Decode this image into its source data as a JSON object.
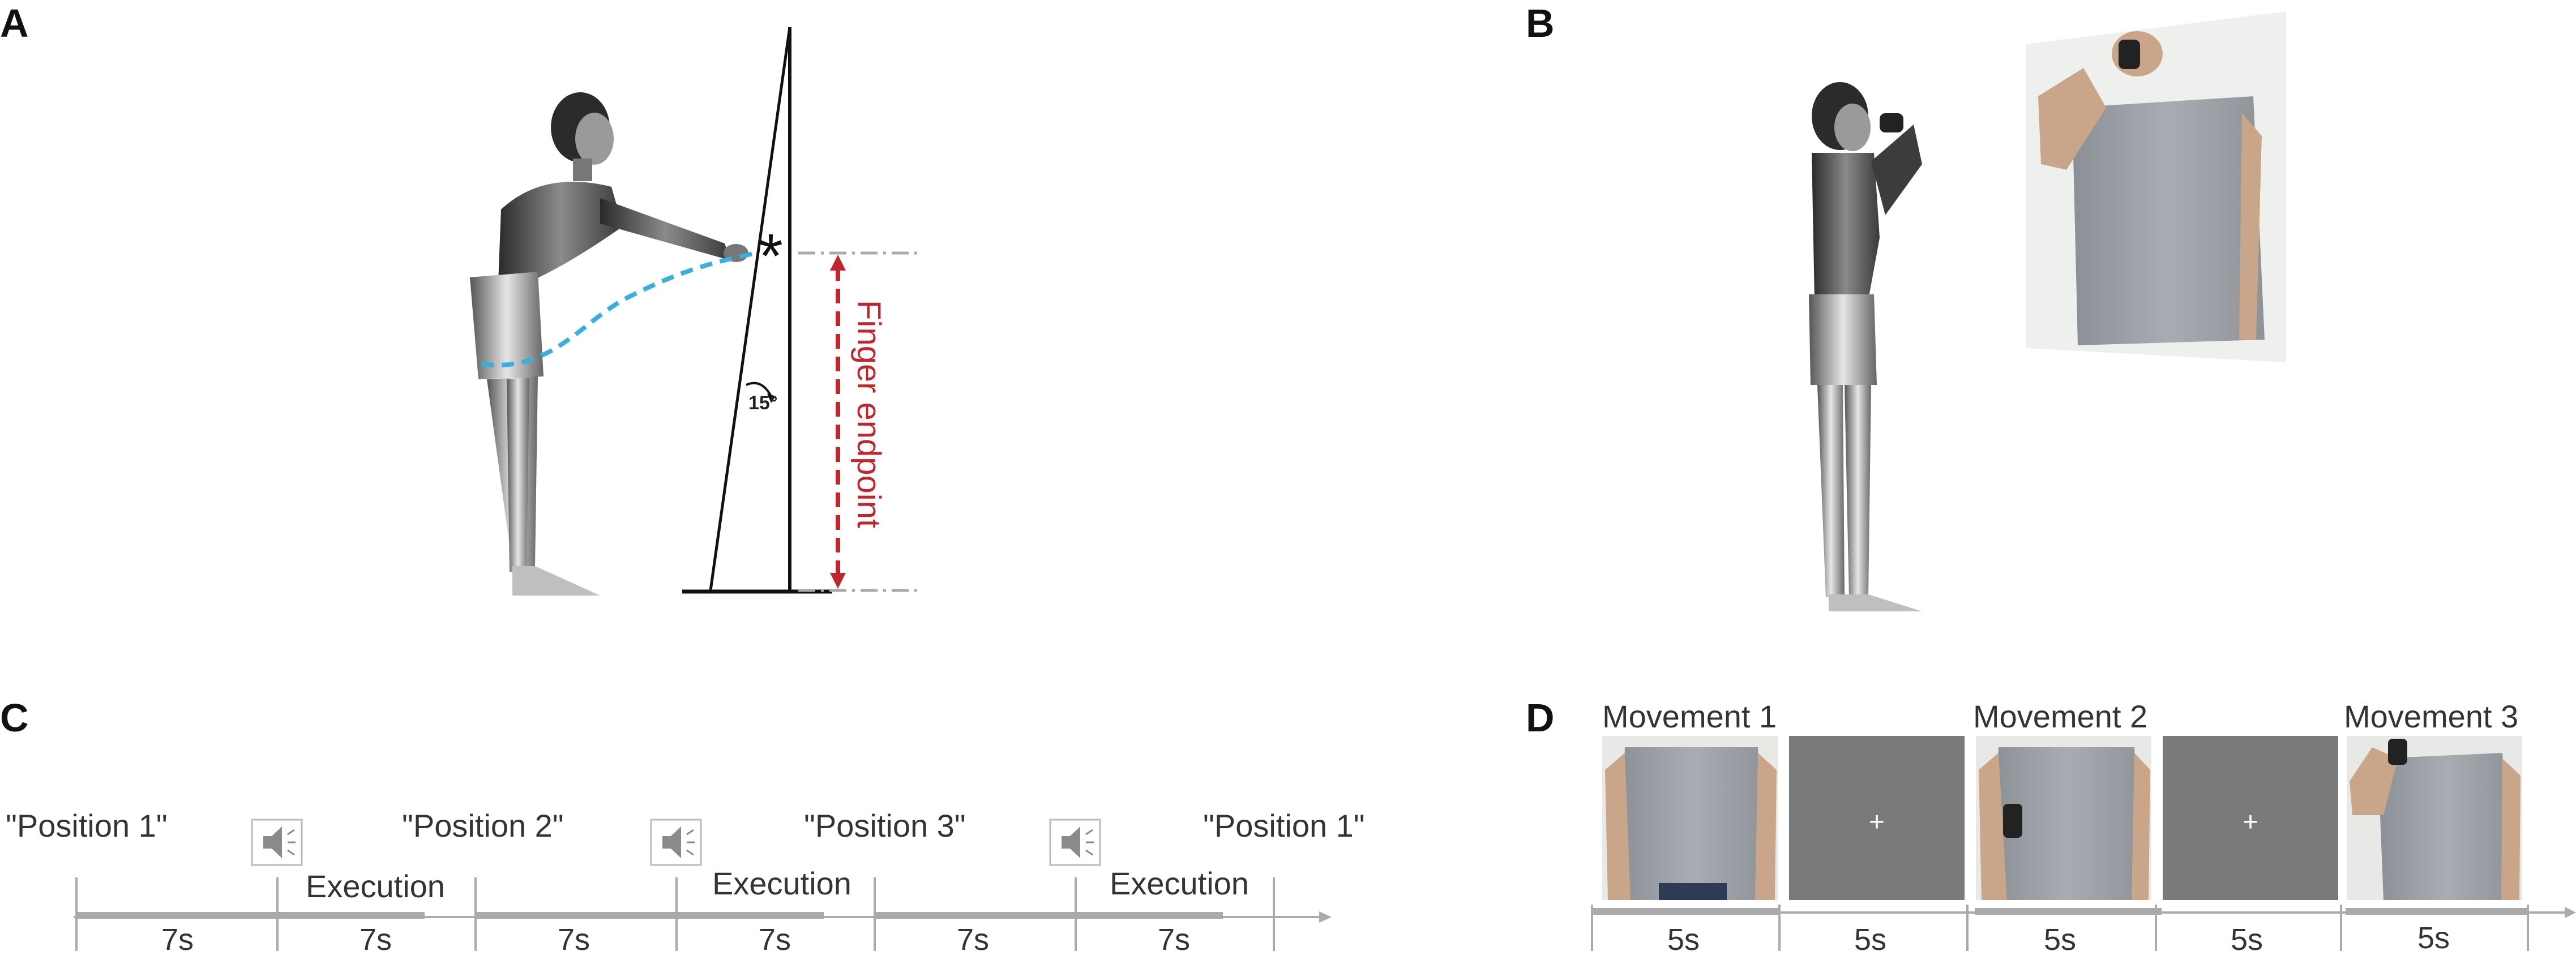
{
  "panels": {
    "a": {
      "letter": "A",
      "angle_label": "15°",
      "axis_label": "Finger endpoint",
      "marker": "*"
    },
    "b": {
      "letter": "B"
    },
    "c": {
      "letter": "C",
      "positions": [
        "\"Position 1\"",
        "\"Position 2\"",
        "\"Position 3\"",
        "\"Position 1\""
      ],
      "execution_label": "Execution",
      "durations": [
        "7s",
        "7s",
        "7s",
        "7s",
        "7s",
        "7s"
      ],
      "speaker_icon": "speaker-icon"
    },
    "d": {
      "letter": "D",
      "movements": [
        "Movement 1",
        "Movement 2",
        "Movement 3"
      ],
      "fixation": "+",
      "durations": [
        "5s",
        "5s",
        "5s",
        "5s",
        "5s"
      ]
    }
  },
  "colors": {
    "axis_gray": "#aaaaaa",
    "endpoint_red": "#c0262d",
    "trajectory_blue": "#3aaede",
    "fixation_bg": "#7a7a7a",
    "shirt_gray": "#9a9ea4"
  }
}
